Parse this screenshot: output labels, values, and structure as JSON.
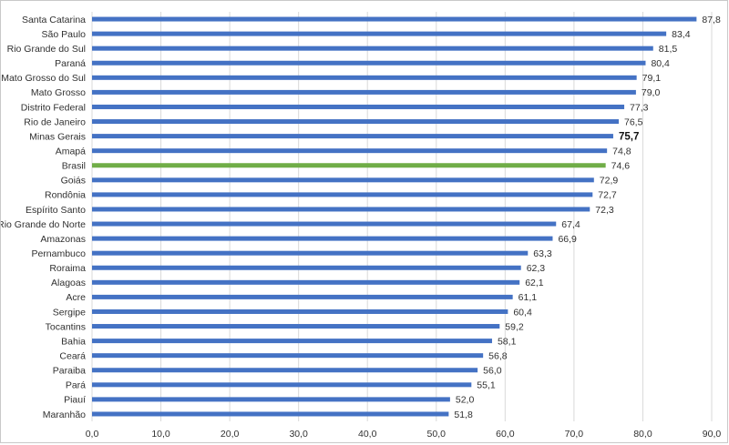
{
  "chart_data": {
    "type": "bar",
    "orientation": "horizontal",
    "categories": [
      "Santa Catarina",
      "São Paulo",
      "Rio Grande do Sul",
      "Paraná",
      "Mato Grosso do Sul",
      "Mato Grosso",
      "Distrito Federal",
      "Rio de Janeiro",
      "Minas Gerais",
      "Amapá",
      "Brasil",
      "Goiás",
      "Rondônia",
      "Espírito Santo",
      "Rio Grande do Norte",
      "Amazonas",
      "Pernambuco",
      "Roraima",
      "Alagoas",
      "Acre",
      "Sergipe",
      "Tocantins",
      "Bahia",
      "Ceará",
      "Paraiba",
      "Pará",
      "Piauí",
      "Maranhão"
    ],
    "values": [
      87.8,
      83.4,
      81.5,
      80.4,
      79.1,
      79.0,
      77.3,
      76.5,
      75.7,
      74.8,
      74.6,
      72.9,
      72.7,
      72.3,
      67.4,
      66.9,
      63.3,
      62.3,
      62.1,
      61.1,
      60.4,
      59.2,
      58.1,
      56.8,
      56.0,
      55.1,
      52.0,
      51.8
    ],
    "value_labels": [
      "87,8",
      "83,4",
      "81,5",
      "80,4",
      "79,1",
      "79,0",
      "77,3",
      "76,5",
      "75,7",
      "74,8",
      "74,6",
      "72,9",
      "72,7",
      "72,3",
      "67,4",
      "66,9",
      "63,3",
      "62,3",
      "62,1",
      "61,1",
      "60,4",
      "59,2",
      "58,1",
      "56,8",
      "56,0",
      "55,1",
      "52,0",
      "51,8"
    ],
    "bold_label": "Minas Gerais",
    "highlight": "Brasil",
    "xlim": [
      0,
      90
    ],
    "xticks": [
      "0,0",
      "10,0",
      "20,0",
      "30,0",
      "40,0",
      "50,0",
      "60,0",
      "70,0",
      "80,0",
      "90,0"
    ],
    "grid": true,
    "colors": {
      "bar": "#4472c4",
      "highlight": "#70ad47"
    }
  }
}
